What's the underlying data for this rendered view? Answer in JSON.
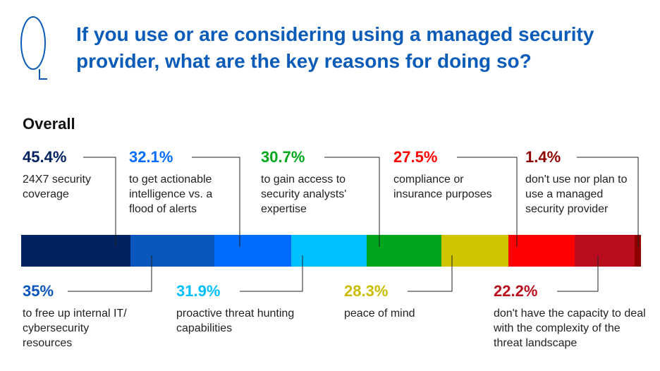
{
  "title": "If you use or are considering using a managed security provider, what are the key reasons for doing so?",
  "subtitle": "Overall",
  "icon": "question-bubble-icon",
  "chart_data": {
    "type": "bar",
    "stacked": true,
    "items": [
      {
        "value": "45.4%",
        "num": 45.4,
        "label": "24X7 security coverage",
        "color": "#002260",
        "pos": "top"
      },
      {
        "value": "35%",
        "num": 35,
        "label": "to free up internal IT/ cybersecurity resources",
        "color": "#0b56bc",
        "pos": "bottom"
      },
      {
        "value": "32.1%",
        "num": 32.1,
        "label": "to get actionable intelligence vs. a flood of alerts",
        "color": "#006cff",
        "pos": "top"
      },
      {
        "value": "31.9%",
        "num": 31.9,
        "label": "proactive threat hunting capabilities",
        "color": "#00c0ff",
        "pos": "bottom"
      },
      {
        "value": "30.7%",
        "num": 30.7,
        "label": "to gain access to security analysts' expertise",
        "color": "#00a61c",
        "pos": "top"
      },
      {
        "value": "28.3%",
        "num": 28.3,
        "label": "peace of mind",
        "color": "#d0c500",
        "pos": "bottom"
      },
      {
        "value": "27.5%",
        "num": 27.5,
        "label": "compliance or insurance purposes",
        "color": "#ff0000",
        "pos": "top"
      },
      {
        "value": "22.2%",
        "num": 22.2,
        "label": "don't have the capacity to deal with the complexity of the threat landscape",
        "color": "#b90d1e",
        "pos": "bottom"
      },
      {
        "value": "1.4%",
        "num": 1.4,
        "label": "don't use nor plan to use a managed security provider",
        "color": "#8f0000",
        "pos": "top"
      }
    ]
  }
}
